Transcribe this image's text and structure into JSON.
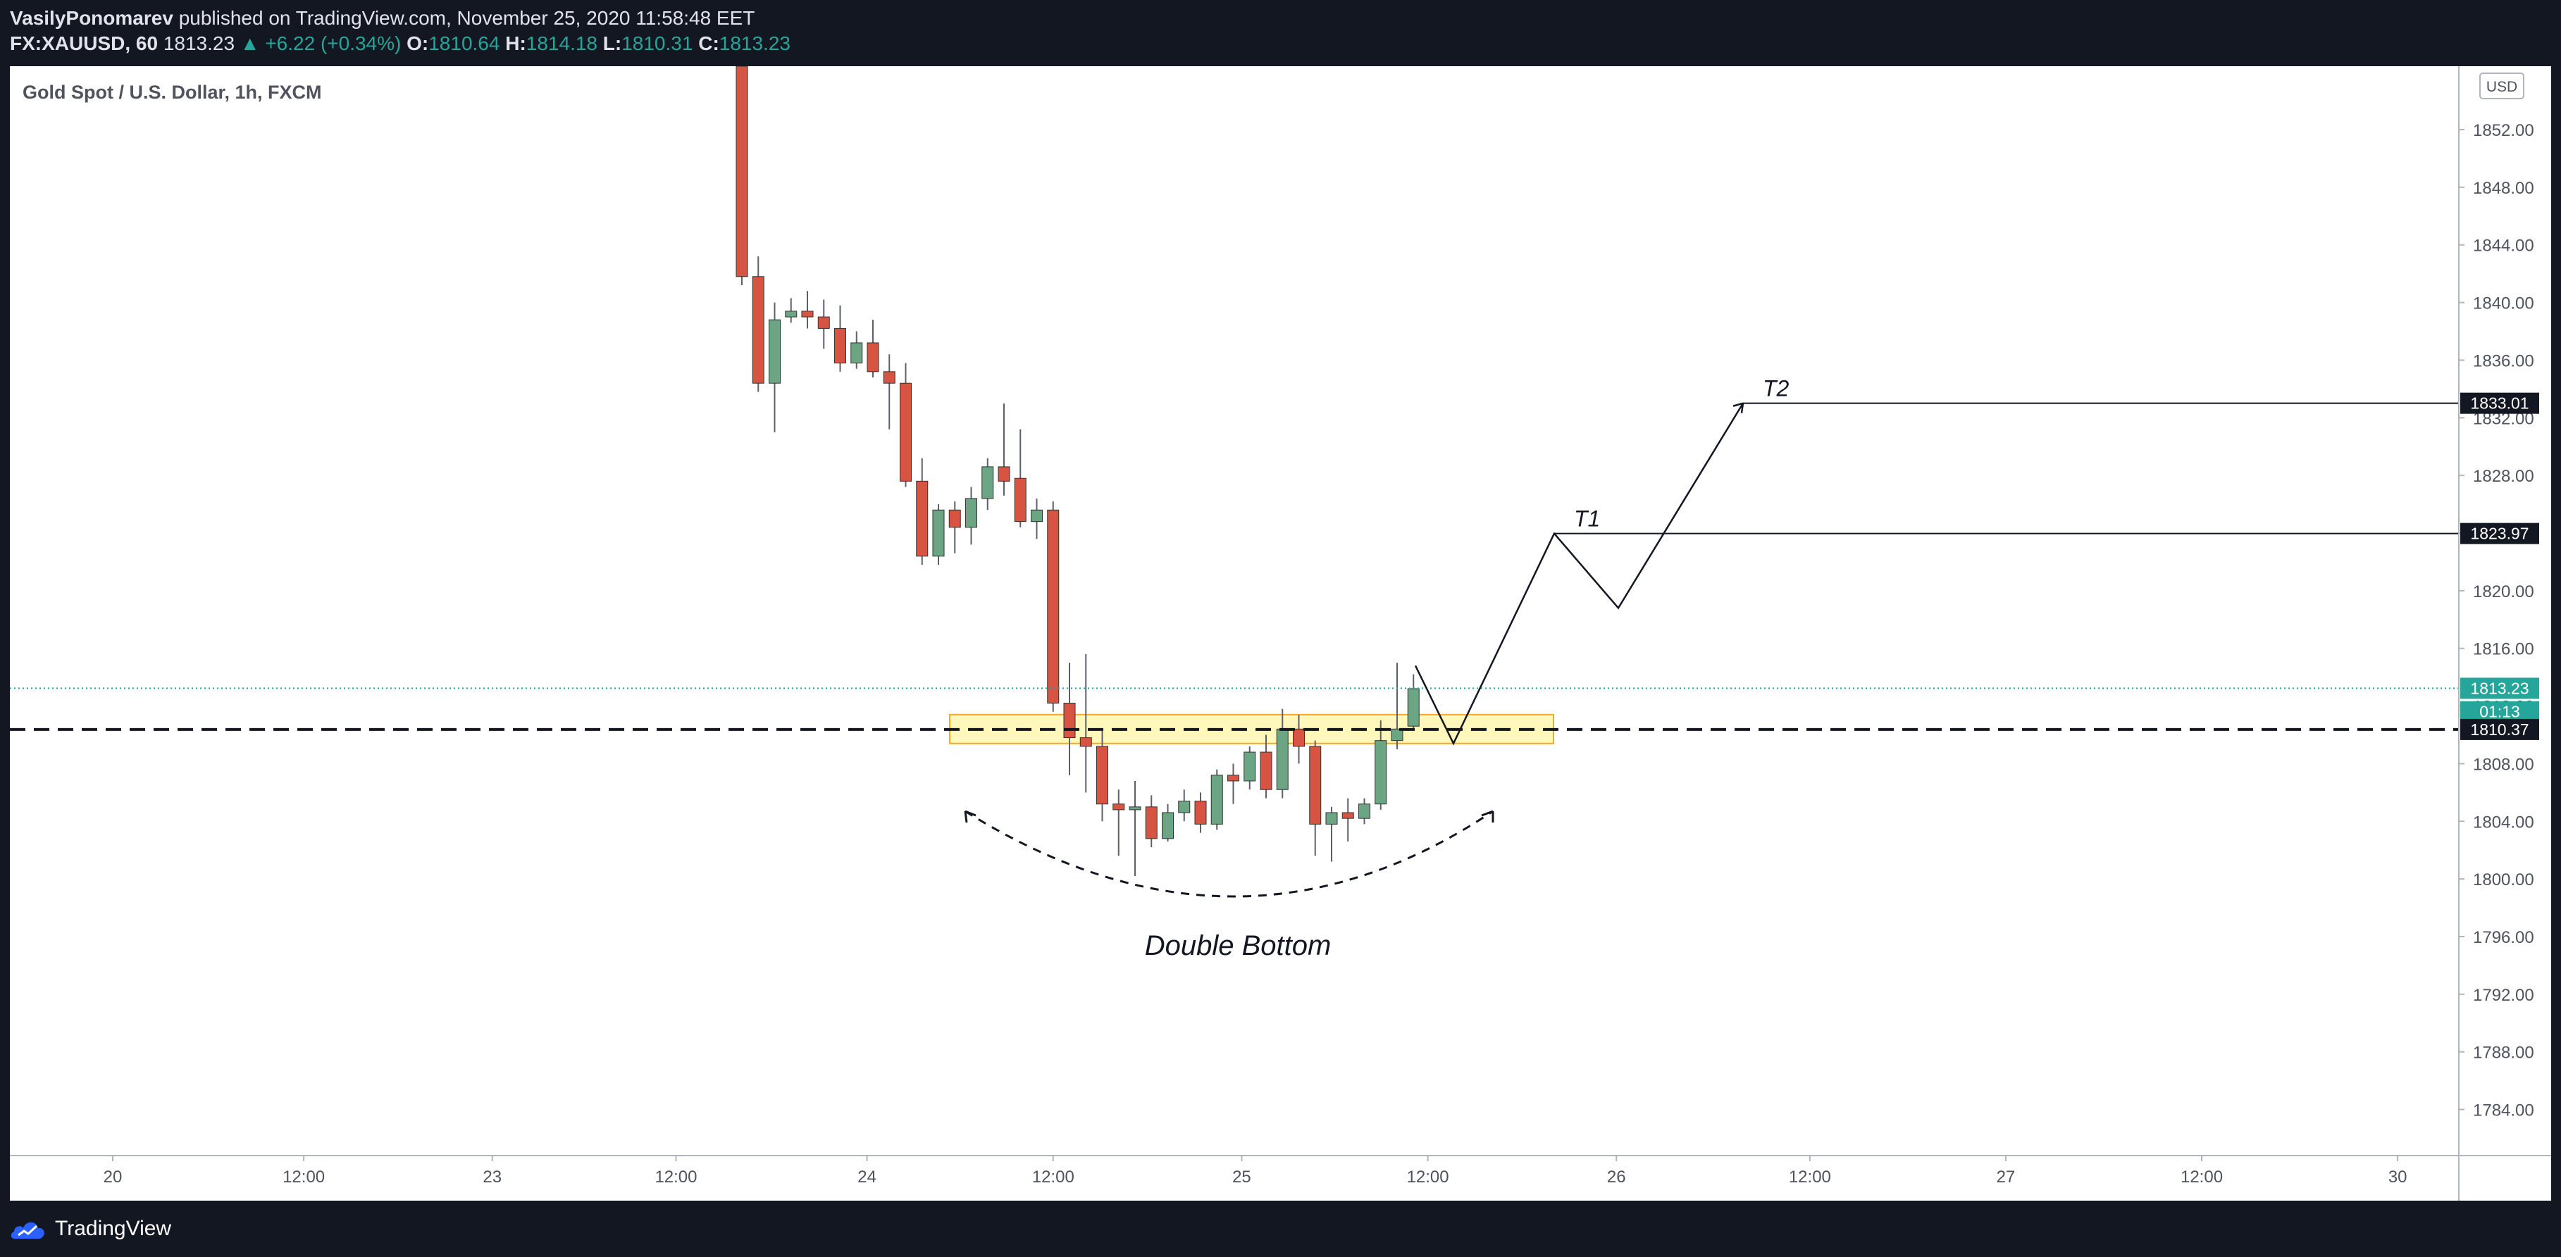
{
  "header": {
    "author": "VasilyPonomarev",
    "published_text": "published on TradingView.com, November 25, 2020 11:58:48 EET",
    "symbol": "FX:XAUUSD, 60",
    "last_price": "1813.23",
    "change": "▲ +6.22 (+0.34%)",
    "o_label": "O:",
    "o_value": "1810.64",
    "h_label": "H:",
    "h_value": "1814.18",
    "l_label": "L:",
    "l_value": "1810.31",
    "c_label": "C:",
    "c_value": "1813.23"
  },
  "footer": {
    "brand": "TradingView"
  },
  "colors": {
    "up": "#6ba583",
    "down": "#d75442",
    "wick": "#5d606b",
    "teal": "#26a69a",
    "zone_fill": "#fff59d",
    "zone_border": "#f9a825"
  },
  "chart_data": {
    "type": "candlestick",
    "title": "Gold Spot / U.S. Dollar, 1h, FXCM",
    "currency_label": "USD",
    "y_axis": {
      "range": [
        1780.8,
        1856.4
      ],
      "ticks": [
        "1852.00",
        "1848.00",
        "1844.00",
        "1840.00",
        "1836.00",
        "1832.00",
        "1828.00",
        "1824.00",
        "1820.00",
        "1816.00",
        "1812.00",
        "1808.00",
        "1804.00",
        "1800.00",
        "1796.00",
        "1792.00",
        "1788.00",
        "1784.00"
      ]
    },
    "x_axis": {
      "ticks": [
        {
          "label": "20",
          "pos": 0.042
        },
        {
          "label": "12:00",
          "pos": 0.12
        },
        {
          "label": "23",
          "pos": 0.197
        },
        {
          "label": "12:00",
          "pos": 0.272
        },
        {
          "label": "24",
          "pos": 0.35
        },
        {
          "label": "12:00",
          "pos": 0.426
        },
        {
          "label": "25",
          "pos": 0.503
        },
        {
          "label": "12:00",
          "pos": 0.579
        },
        {
          "label": "26",
          "pos": 0.656
        },
        {
          "label": "12:00",
          "pos": 0.735
        },
        {
          "label": "27",
          "pos": 0.815
        },
        {
          "label": "12:00",
          "pos": 0.895
        },
        {
          "label": "30",
          "pos": 0.975
        }
      ]
    },
    "candles": [
      {
        "o": 1856.4,
        "h": 1856.4,
        "c": 1841.8,
        "l": 1841.2
      },
      {
        "o": 1841.8,
        "h": 1843.2,
        "c": 1834.4,
        "l": 1833.8
      },
      {
        "o": 1834.4,
        "h": 1840.0,
        "c": 1838.8,
        "l": 1831.0
      },
      {
        "o": 1839.0,
        "h": 1840.3,
        "c": 1839.4,
        "l": 1838.6
      },
      {
        "o": 1839.4,
        "h": 1840.8,
        "c": 1839.0,
        "l": 1838.2
      },
      {
        "o": 1839.0,
        "h": 1840.2,
        "c": 1838.2,
        "l": 1836.8
      },
      {
        "o": 1838.2,
        "h": 1839.8,
        "c": 1835.8,
        "l": 1835.2
      },
      {
        "o": 1835.8,
        "h": 1838.0,
        "c": 1837.2,
        "l": 1835.4
      },
      {
        "o": 1837.2,
        "h": 1838.8,
        "c": 1835.2,
        "l": 1834.8
      },
      {
        "o": 1835.2,
        "h": 1836.4,
        "c": 1834.4,
        "l": 1831.2
      },
      {
        "o": 1834.4,
        "h": 1835.8,
        "c": 1827.6,
        "l": 1827.2
      },
      {
        "o": 1827.6,
        "h": 1829.2,
        "c": 1822.4,
        "l": 1821.8
      },
      {
        "o": 1822.4,
        "h": 1826.0,
        "c": 1825.6,
        "l": 1821.8
      },
      {
        "o": 1825.6,
        "h": 1826.2,
        "c": 1824.4,
        "l": 1822.6
      },
      {
        "o": 1824.4,
        "h": 1827.2,
        "c": 1826.4,
        "l": 1823.2
      },
      {
        "o": 1826.4,
        "h": 1829.2,
        "c": 1828.6,
        "l": 1825.6
      },
      {
        "o": 1828.6,
        "h": 1833.0,
        "c": 1827.6,
        "l": 1826.6
      },
      {
        "o": 1827.8,
        "h": 1831.2,
        "c": 1824.8,
        "l": 1824.4
      },
      {
        "o": 1824.8,
        "h": 1826.4,
        "c": 1825.6,
        "l": 1823.6
      },
      {
        "o": 1825.6,
        "h": 1826.2,
        "c": 1812.2,
        "l": 1811.6
      },
      {
        "o": 1812.2,
        "h": 1815.0,
        "c": 1809.8,
        "l": 1807.2
      },
      {
        "o": 1809.8,
        "h": 1815.6,
        "c": 1809.2,
        "l": 1806.0
      },
      {
        "o": 1809.2,
        "h": 1810.4,
        "c": 1805.2,
        "l": 1804.0
      },
      {
        "o": 1805.2,
        "h": 1806.2,
        "c": 1804.8,
        "l": 1801.6
      },
      {
        "o": 1804.8,
        "h": 1806.8,
        "c": 1805.0,
        "l": 1800.2
      },
      {
        "o": 1805.0,
        "h": 1805.8,
        "c": 1802.8,
        "l": 1802.2
      },
      {
        "o": 1802.8,
        "h": 1805.2,
        "c": 1804.6,
        "l": 1802.6
      },
      {
        "o": 1804.6,
        "h": 1806.2,
        "c": 1805.4,
        "l": 1804.0
      },
      {
        "o": 1805.4,
        "h": 1806.0,
        "c": 1803.8,
        "l": 1803.2
      },
      {
        "o": 1803.8,
        "h": 1807.6,
        "c": 1807.2,
        "l": 1803.4
      },
      {
        "o": 1807.2,
        "h": 1808.0,
        "c": 1806.8,
        "l": 1805.2
      },
      {
        "o": 1806.8,
        "h": 1809.2,
        "c": 1808.8,
        "l": 1806.2
      },
      {
        "o": 1808.8,
        "h": 1810.0,
        "c": 1806.2,
        "l": 1805.6
      },
      {
        "o": 1806.2,
        "h": 1811.8,
        "c": 1810.4,
        "l": 1805.6
      },
      {
        "o": 1810.4,
        "h": 1811.4,
        "c": 1809.2,
        "l": 1808.0
      },
      {
        "o": 1809.2,
        "h": 1809.6,
        "c": 1803.8,
        "l": 1801.6
      },
      {
        "o": 1803.8,
        "h": 1805.0,
        "c": 1804.6,
        "l": 1801.2
      },
      {
        "o": 1804.6,
        "h": 1805.6,
        "c": 1804.2,
        "l": 1802.6
      },
      {
        "o": 1804.2,
        "h": 1805.6,
        "c": 1805.2,
        "l": 1803.8
      },
      {
        "o": 1805.2,
        "h": 1811.0,
        "c": 1809.6,
        "l": 1804.8
      },
      {
        "o": 1809.6,
        "h": 1815.0,
        "c": 1810.4,
        "l": 1809.0
      },
      {
        "o": 1810.6,
        "h": 1814.2,
        "c": 1813.2,
        "l": 1810.3
      }
    ],
    "drawings": {
      "support_level": 1810.37,
      "zone": {
        "top": 1811.4,
        "bottom": 1809.4
      },
      "double_bottom_label": "Double Bottom",
      "targets": [
        {
          "label": "T1",
          "price": 1823.97
        },
        {
          "label": "T2",
          "price": 1833.01
        }
      ],
      "projection_path": [
        1814.8,
        1809.4,
        1823.97,
        1818.8,
        1833.01
      ]
    },
    "price_labels": [
      {
        "text": "1833.01",
        "price": 1833.01,
        "style": "black"
      },
      {
        "text": "1823.97",
        "price": 1823.97,
        "style": "black"
      },
      {
        "text": "1813.23",
        "price": 1813.23,
        "style": "teal"
      },
      {
        "text": "01:13",
        "price": 1811.6,
        "style": "teal"
      },
      {
        "text": "1810.37",
        "price": 1810.37,
        "style": "black"
      }
    ]
  }
}
